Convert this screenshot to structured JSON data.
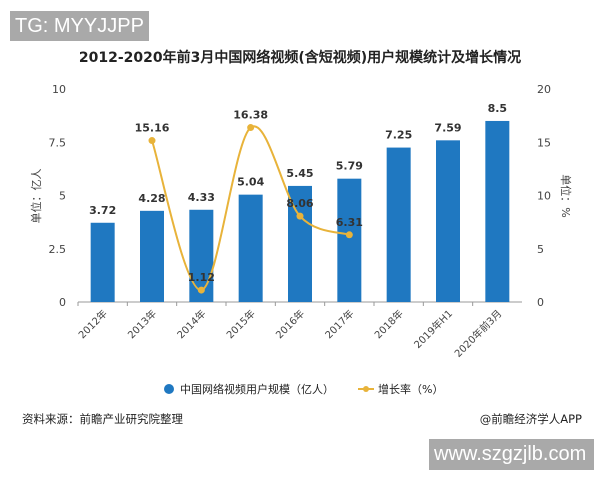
{
  "watermark_top": "TG: MYYJJPP",
  "watermark_bottom": "www.szgzjlb.com",
  "source": "资料来源：前瞻产业研究院整理",
  "credit": "@前瞻经济学人APP",
  "chart_data": {
    "type": "bar+line",
    "title": "2012-2020年前3月中国网络视频(含短视频)用户规模统计及增长情况",
    "ylabel": "单位：亿人",
    "y2label": "单位：%",
    "ylim": [
      0,
      10
    ],
    "y2lim": [
      0,
      20
    ],
    "yticks": [
      "0",
      "2.5",
      "5",
      "7.5",
      "10"
    ],
    "y2ticks": [
      "0",
      "5",
      "10",
      "15",
      "20"
    ],
    "categories": [
      "2012年",
      "2013年",
      "2014年",
      "2015年",
      "2016年",
      "2017年",
      "2018年",
      "2019年H1",
      "2020年前3月"
    ],
    "series": [
      {
        "name": "中国网络视频用户规模（亿人）",
        "type": "bar",
        "axis": "left",
        "color": "#1f78c1",
        "values": [
          3.72,
          4.28,
          4.33,
          5.04,
          5.45,
          5.79,
          7.25,
          7.59,
          8.5
        ],
        "labels": [
          "3.72",
          "4.28",
          "4.33",
          "5.04",
          "5.45",
          "5.79",
          "7.25",
          "7.59",
          "8.5"
        ]
      },
      {
        "name": "增长率（%）",
        "type": "line",
        "axis": "right",
        "color": "#e8b33a",
        "values": [
          null,
          15.16,
          1.12,
          16.38,
          8.06,
          6.31,
          null,
          null,
          null
        ],
        "labels": [
          "",
          "15.16",
          "1.12",
          "16.38",
          "8.06",
          "6.31",
          "",
          "",
          ""
        ]
      }
    ],
    "grid": false,
    "legend": "bottom"
  }
}
